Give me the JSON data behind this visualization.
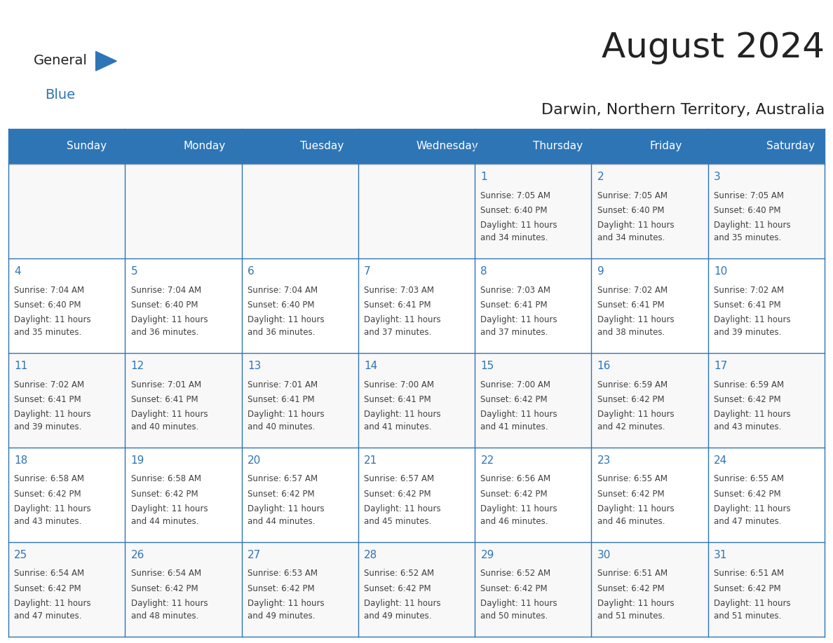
{
  "title": "August 2024",
  "subtitle": "Darwin, Northern Territory, Australia",
  "days_of_week": [
    "Sunday",
    "Monday",
    "Tuesday",
    "Wednesday",
    "Thursday",
    "Friday",
    "Saturday"
  ],
  "header_bg_color": "#2E75B6",
  "header_text_color": "#FFFFFF",
  "cell_bg_color": "#FFFFFF",
  "cell_alt_bg_color": "#F2F2F2",
  "grid_color": "#2E75B6",
  "day_number_color": "#2E75B6",
  "cell_text_color": "#404040",
  "title_color": "#222222",
  "subtitle_color": "#222222",
  "logo_general_color": "#222222",
  "logo_blue_color": "#2E75B6",
  "calendar_data": [
    [
      null,
      null,
      null,
      null,
      {
        "day": 1,
        "sunrise": "7:05 AM",
        "sunset": "6:40 PM",
        "daylight_hours": 11,
        "daylight_minutes": 34
      },
      {
        "day": 2,
        "sunrise": "7:05 AM",
        "sunset": "6:40 PM",
        "daylight_hours": 11,
        "daylight_minutes": 34
      },
      {
        "day": 3,
        "sunrise": "7:05 AM",
        "sunset": "6:40 PM",
        "daylight_hours": 11,
        "daylight_minutes": 35
      }
    ],
    [
      {
        "day": 4,
        "sunrise": "7:04 AM",
        "sunset": "6:40 PM",
        "daylight_hours": 11,
        "daylight_minutes": 35
      },
      {
        "day": 5,
        "sunrise": "7:04 AM",
        "sunset": "6:40 PM",
        "daylight_hours": 11,
        "daylight_minutes": 36
      },
      {
        "day": 6,
        "sunrise": "7:04 AM",
        "sunset": "6:40 PM",
        "daylight_hours": 11,
        "daylight_minutes": 36
      },
      {
        "day": 7,
        "sunrise": "7:03 AM",
        "sunset": "6:41 PM",
        "daylight_hours": 11,
        "daylight_minutes": 37
      },
      {
        "day": 8,
        "sunrise": "7:03 AM",
        "sunset": "6:41 PM",
        "daylight_hours": 11,
        "daylight_minutes": 37
      },
      {
        "day": 9,
        "sunrise": "7:02 AM",
        "sunset": "6:41 PM",
        "daylight_hours": 11,
        "daylight_minutes": 38
      },
      {
        "day": 10,
        "sunrise": "7:02 AM",
        "sunset": "6:41 PM",
        "daylight_hours": 11,
        "daylight_minutes": 39
      }
    ],
    [
      {
        "day": 11,
        "sunrise": "7:02 AM",
        "sunset": "6:41 PM",
        "daylight_hours": 11,
        "daylight_minutes": 39
      },
      {
        "day": 12,
        "sunrise": "7:01 AM",
        "sunset": "6:41 PM",
        "daylight_hours": 11,
        "daylight_minutes": 40
      },
      {
        "day": 13,
        "sunrise": "7:01 AM",
        "sunset": "6:41 PM",
        "daylight_hours": 11,
        "daylight_minutes": 40
      },
      {
        "day": 14,
        "sunrise": "7:00 AM",
        "sunset": "6:41 PM",
        "daylight_hours": 11,
        "daylight_minutes": 41
      },
      {
        "day": 15,
        "sunrise": "7:00 AM",
        "sunset": "6:42 PM",
        "daylight_hours": 11,
        "daylight_minutes": 41
      },
      {
        "day": 16,
        "sunrise": "6:59 AM",
        "sunset": "6:42 PM",
        "daylight_hours": 11,
        "daylight_minutes": 42
      },
      {
        "day": 17,
        "sunrise": "6:59 AM",
        "sunset": "6:42 PM",
        "daylight_hours": 11,
        "daylight_minutes": 43
      }
    ],
    [
      {
        "day": 18,
        "sunrise": "6:58 AM",
        "sunset": "6:42 PM",
        "daylight_hours": 11,
        "daylight_minutes": 43
      },
      {
        "day": 19,
        "sunrise": "6:58 AM",
        "sunset": "6:42 PM",
        "daylight_hours": 11,
        "daylight_minutes": 44
      },
      {
        "day": 20,
        "sunrise": "6:57 AM",
        "sunset": "6:42 PM",
        "daylight_hours": 11,
        "daylight_minutes": 44
      },
      {
        "day": 21,
        "sunrise": "6:57 AM",
        "sunset": "6:42 PM",
        "daylight_hours": 11,
        "daylight_minutes": 45
      },
      {
        "day": 22,
        "sunrise": "6:56 AM",
        "sunset": "6:42 PM",
        "daylight_hours": 11,
        "daylight_minutes": 46
      },
      {
        "day": 23,
        "sunrise": "6:55 AM",
        "sunset": "6:42 PM",
        "daylight_hours": 11,
        "daylight_minutes": 46
      },
      {
        "day": 24,
        "sunrise": "6:55 AM",
        "sunset": "6:42 PM",
        "daylight_hours": 11,
        "daylight_minutes": 47
      }
    ],
    [
      {
        "day": 25,
        "sunrise": "6:54 AM",
        "sunset": "6:42 PM",
        "daylight_hours": 11,
        "daylight_minutes": 47
      },
      {
        "day": 26,
        "sunrise": "6:54 AM",
        "sunset": "6:42 PM",
        "daylight_hours": 11,
        "daylight_minutes": 48
      },
      {
        "day": 27,
        "sunrise": "6:53 AM",
        "sunset": "6:42 PM",
        "daylight_hours": 11,
        "daylight_minutes": 49
      },
      {
        "day": 28,
        "sunrise": "6:52 AM",
        "sunset": "6:42 PM",
        "daylight_hours": 11,
        "daylight_minutes": 49
      },
      {
        "day": 29,
        "sunrise": "6:52 AM",
        "sunset": "6:42 PM",
        "daylight_hours": 11,
        "daylight_minutes": 50
      },
      {
        "day": 30,
        "sunrise": "6:51 AM",
        "sunset": "6:42 PM",
        "daylight_hours": 11,
        "daylight_minutes": 51
      },
      {
        "day": 31,
        "sunrise": "6:51 AM",
        "sunset": "6:42 PM",
        "daylight_hours": 11,
        "daylight_minutes": 51
      }
    ]
  ]
}
